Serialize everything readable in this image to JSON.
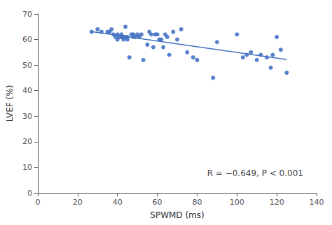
{
  "chart_data": {
    "type": "scatter",
    "xlabel": "SPWMD (ms)",
    "ylabel": "LVEF (%)",
    "xlim": [
      0,
      140
    ],
    "ylim": [
      0,
      70
    ],
    "xticks": [
      0,
      20,
      40,
      60,
      80,
      100,
      120,
      140
    ],
    "yticks": [
      0,
      10,
      20,
      30,
      40,
      50,
      60,
      70
    ],
    "grid": false,
    "series": [
      {
        "type": "scatter",
        "color": "#4472C4",
        "marker": "circle",
        "x": [
          27,
          30,
          32,
          35,
          36,
          37,
          38,
          39,
          40,
          40,
          41,
          42,
          42,
          43,
          43,
          44,
          44,
          45,
          45,
          46,
          47,
          48,
          48,
          49,
          50,
          51,
          52,
          53,
          55,
          56,
          57,
          58,
          59,
          60,
          61,
          62,
          63,
          64,
          65,
          66,
          68,
          70,
          72,
          75,
          78,
          80,
          88,
          90,
          100,
          103,
          105,
          107,
          110,
          112,
          115,
          117,
          118,
          120,
          122,
          125
        ],
        "values": [
          63,
          64,
          63,
          63,
          63,
          64,
          62,
          61,
          60,
          62,
          61,
          61,
          62,
          60,
          61,
          61,
          65,
          60,
          61,
          53,
          62,
          62,
          61,
          61,
          62,
          61,
          62,
          52,
          58,
          63,
          62,
          57,
          62,
          62,
          60,
          60,
          57,
          62,
          61,
          54,
          63,
          60,
          64,
          55,
          53,
          52,
          45,
          59,
          62,
          53,
          54,
          55,
          52,
          54,
          53,
          49,
          54,
          61,
          56,
          47
        ]
      },
      {
        "type": "line",
        "color": "#4472C4",
        "line_style": "solid",
        "x": [
          27,
          125
        ],
        "values": [
          63.074,
          52.166
        ]
      }
    ],
    "annotations": [
      {
        "text": "R = −0.649, P < 0.001",
        "x": 85,
        "y": 6
      }
    ]
  }
}
